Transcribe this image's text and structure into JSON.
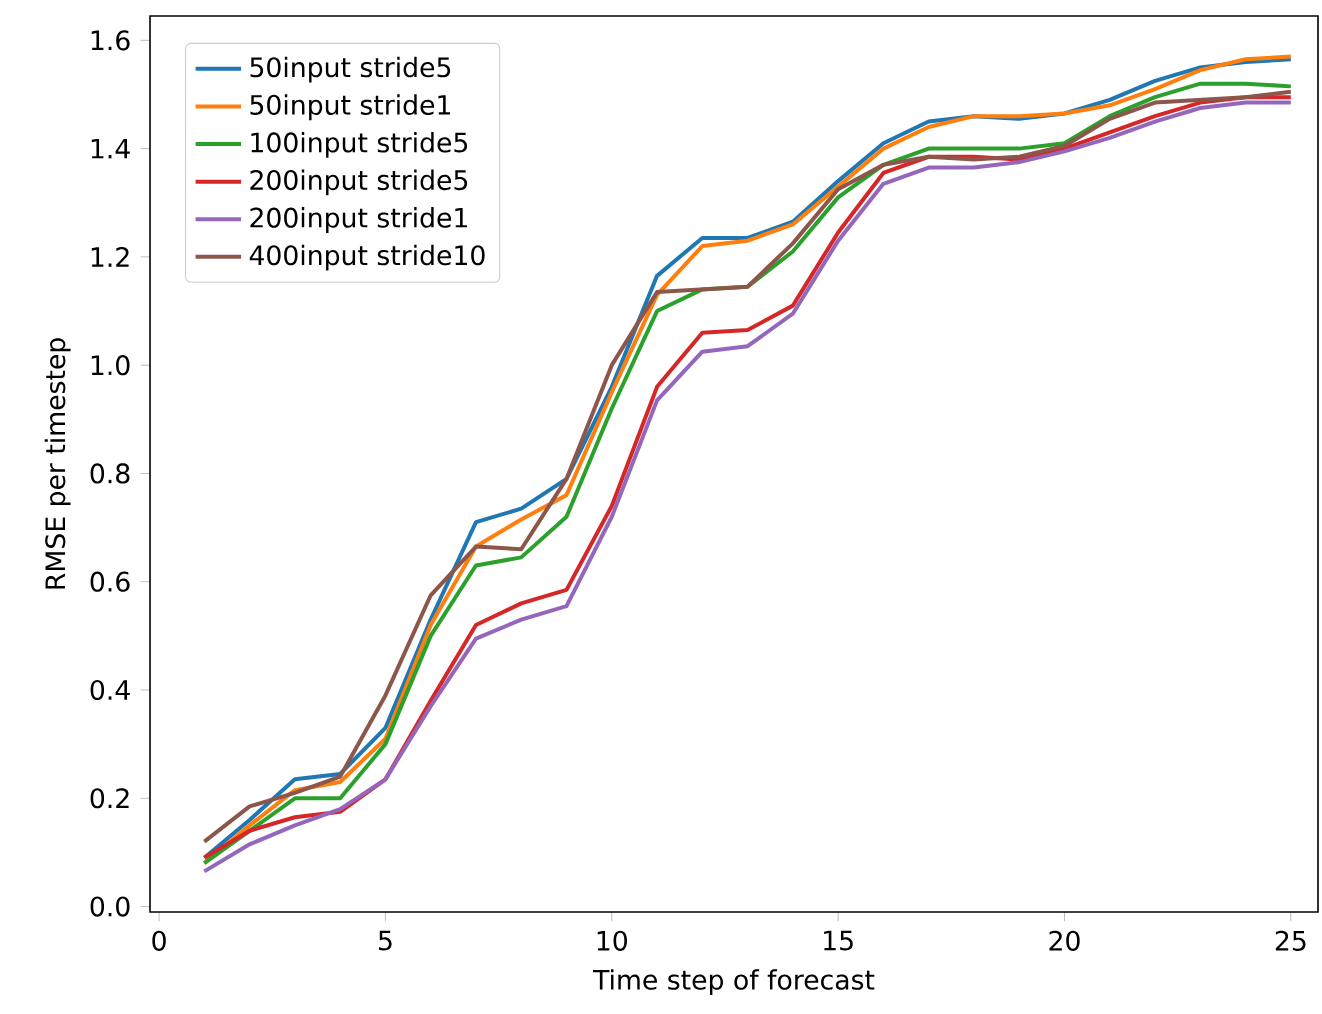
{
  "chart_data": {
    "type": "line",
    "xlabel": "Time step of forecast",
    "ylabel": "RMSE per timestep",
    "x": [
      1,
      2,
      3,
      4,
      5,
      6,
      7,
      8,
      9,
      10,
      11,
      12,
      13,
      14,
      15,
      16,
      17,
      18,
      19,
      20,
      21,
      22,
      23,
      24,
      25
    ],
    "series": [
      {
        "name": "50input stride5",
        "color": "#1f77b4",
        "values": [
          0.09,
          0.16,
          0.235,
          0.245,
          0.33,
          0.53,
          0.71,
          0.735,
          0.79,
          0.96,
          1.165,
          1.235,
          1.235,
          1.265,
          1.34,
          1.41,
          1.45,
          1.46,
          1.455,
          1.465,
          1.49,
          1.525,
          1.55,
          1.56,
          1.565
        ]
      },
      {
        "name": "50input stride1",
        "color": "#ff7f0e",
        "values": [
          0.08,
          0.15,
          0.215,
          0.23,
          0.31,
          0.52,
          0.665,
          0.715,
          0.76,
          0.95,
          1.13,
          1.22,
          1.23,
          1.26,
          1.33,
          1.4,
          1.44,
          1.46,
          1.46,
          1.465,
          1.48,
          1.51,
          1.545,
          1.565,
          1.57
        ]
      },
      {
        "name": "100input stride5",
        "color": "#2ca02c",
        "values": [
          0.08,
          0.14,
          0.2,
          0.2,
          0.3,
          0.5,
          0.63,
          0.645,
          0.72,
          0.92,
          1.1,
          1.14,
          1.145,
          1.21,
          1.31,
          1.37,
          1.4,
          1.4,
          1.4,
          1.41,
          1.46,
          1.495,
          1.52,
          1.52,
          1.515
        ]
      },
      {
        "name": "200input stride5",
        "color": "#d62728",
        "values": [
          0.09,
          0.14,
          0.165,
          0.175,
          0.235,
          0.38,
          0.52,
          0.56,
          0.585,
          0.74,
          0.96,
          1.06,
          1.065,
          1.11,
          1.245,
          1.355,
          1.385,
          1.385,
          1.38,
          1.4,
          1.43,
          1.46,
          1.485,
          1.495,
          1.495
        ]
      },
      {
        "name": "200input stride1",
        "color": "#9467bd",
        "values": [
          0.065,
          0.115,
          0.15,
          0.18,
          0.235,
          0.37,
          0.495,
          0.53,
          0.555,
          0.72,
          0.935,
          1.025,
          1.035,
          1.095,
          1.23,
          1.335,
          1.365,
          1.365,
          1.375,
          1.395,
          1.42,
          1.45,
          1.475,
          1.485,
          1.485
        ]
      },
      {
        "name": "400input stride10",
        "color": "#8c564b",
        "values": [
          0.12,
          0.185,
          0.21,
          0.24,
          0.39,
          0.575,
          0.665,
          0.66,
          0.79,
          1.0,
          1.135,
          1.14,
          1.145,
          1.225,
          1.325,
          1.37,
          1.385,
          1.38,
          1.385,
          1.405,
          1.455,
          1.485,
          1.49,
          1.495,
          1.505
        ]
      }
    ],
    "xlim": [
      -0.2,
      25.6
    ],
    "ylim": [
      -0.01,
      1.645
    ],
    "xticks": [
      0,
      5,
      10,
      15,
      20,
      25
    ],
    "yticks": [
      {
        "value": 0,
        "label": "0.0"
      },
      {
        "value": 0.2,
        "label": "0.2"
      },
      {
        "value": 0.4,
        "label": "0.4"
      },
      {
        "value": 0.6,
        "label": "0.6"
      },
      {
        "value": 0.8,
        "label": "0.8"
      },
      {
        "value": 1.0,
        "label": "1.0"
      },
      {
        "value": 1.2,
        "label": "1.2"
      },
      {
        "value": 1.4,
        "label": "1.4"
      },
      {
        "value": 1.6,
        "label": "1.6"
      }
    ],
    "legend": "top left"
  }
}
